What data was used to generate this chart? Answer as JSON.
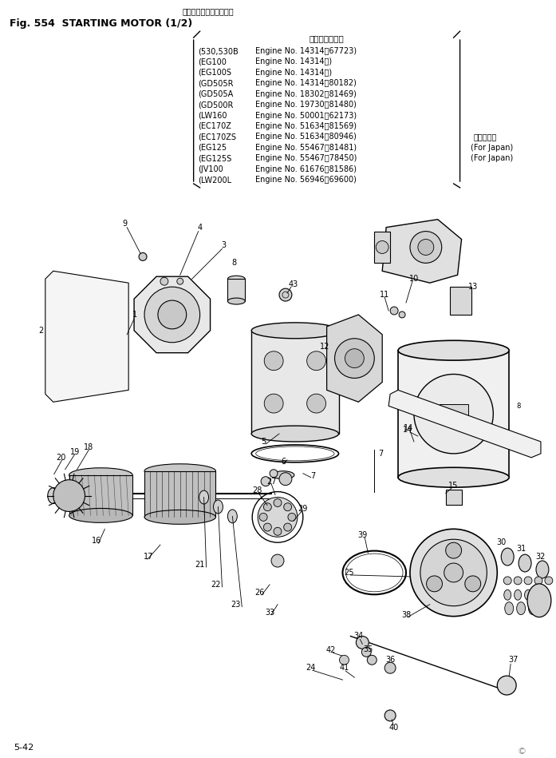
{
  "title_jp": "スターティング　モータ",
  "title_en": "Fig. 554  STARTING MOTOR (1/2)",
  "applicable_header": "適　用　号　機",
  "models": [
    [
      "530,530B",
      "Engine No. 14314～67723)"
    ],
    [
      "EG100",
      "Engine No. 14314～)"
    ],
    [
      "EG100S",
      "Engine No. 14314～)"
    ],
    [
      "GD505R",
      "Engine No. 14314～80182)"
    ],
    [
      "GD505A",
      "Engine No. 18302～81469)"
    ],
    [
      "GD500R",
      "Engine No. 19730～81480)"
    ],
    [
      "LW160",
      "Engine No. 50001～62173)"
    ],
    [
      "EC170Z",
      "Engine No. 51634～81569)"
    ],
    [
      "EC170ZS",
      "Engine No. 51634～80946)"
    ],
    [
      "EG125",
      "Engine No. 55467～81481)"
    ],
    [
      "EG125S",
      "Engine No. 55467～78450)"
    ],
    [
      "JV100",
      "Engine No. 61676～81586)"
    ],
    [
      "LW200L",
      "Engine No. 56946～69600)"
    ]
  ],
  "japan_label": "国　内　向",
  "for_japan1": "(For Japan)",
  "for_japan2": "(For Japan)",
  "page_num": "5-42",
  "bg_color": "#ffffff"
}
